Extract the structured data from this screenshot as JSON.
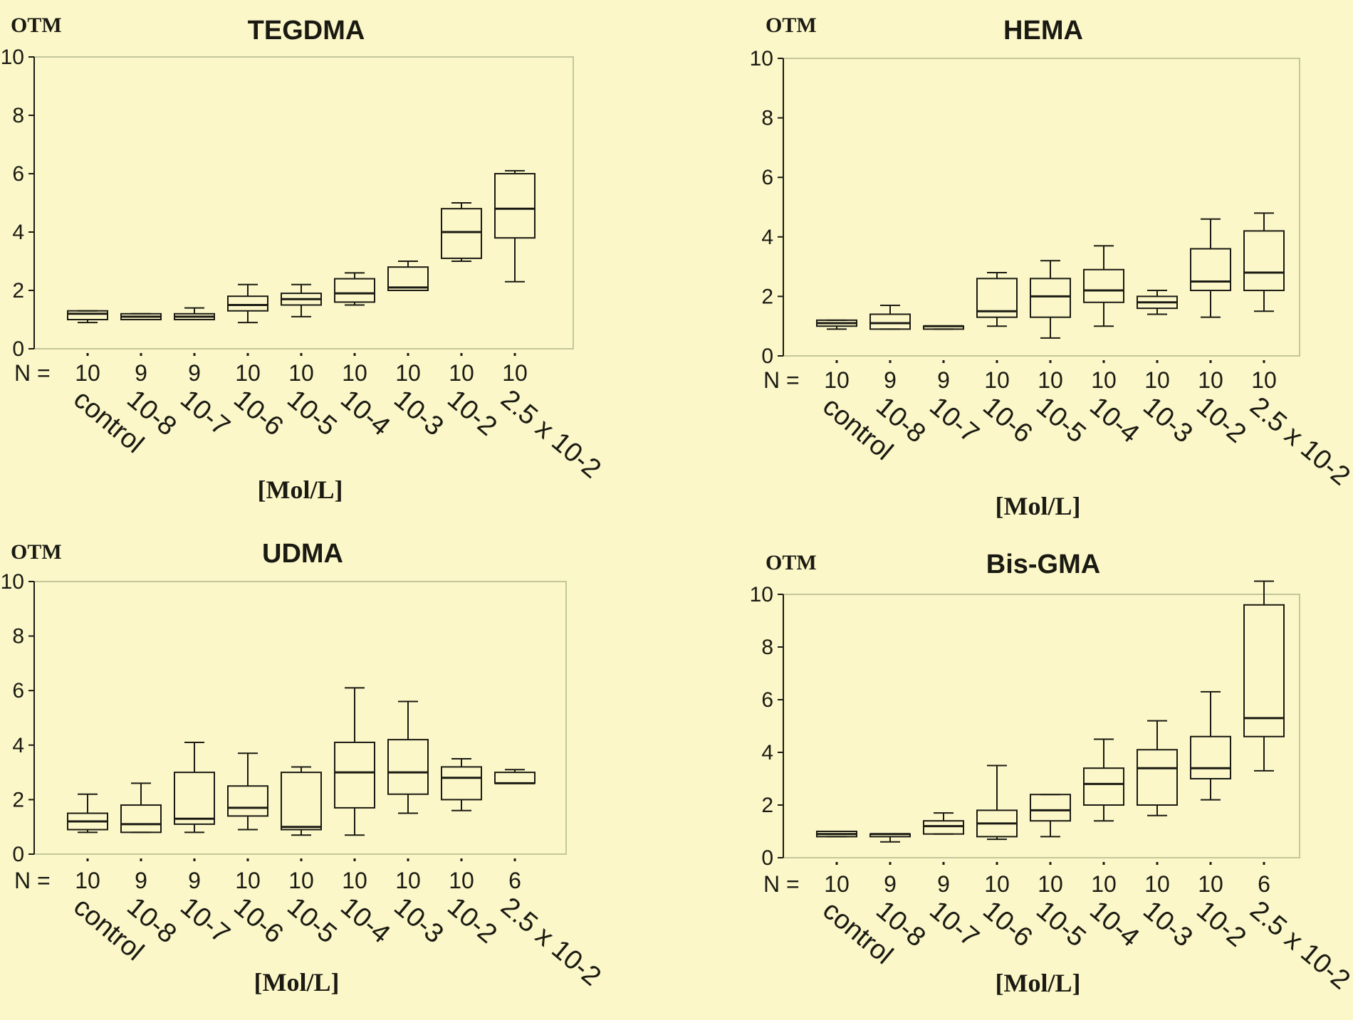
{
  "colors": {
    "background": "#fbf7c9",
    "frame": "#c3c79a",
    "ink": "#1a1a12"
  },
  "chart_data": [
    {
      "type": "box",
      "title": "TEGDMA",
      "ylabel": "OTM",
      "xlabel": "[Mol/L]",
      "n_prefix": "N =",
      "ylim": [
        0,
        10
      ],
      "yticks": [
        "0",
        "2",
        "4",
        "6",
        "8",
        "10"
      ],
      "categories": [
        "control",
        "10-8",
        "10-7",
        "10-6",
        "10-5",
        "10-4",
        "10-3",
        "10-2",
        "2.5 x 10-2"
      ],
      "n": [
        "10",
        "9",
        "9",
        "10",
        "10",
        "10",
        "10",
        "10",
        "10"
      ],
      "boxes": [
        {
          "min": 0.9,
          "q1": 1.0,
          "median": 1.2,
          "q3": 1.3,
          "max": 1.3
        },
        {
          "min": 1.0,
          "q1": 1.0,
          "median": 1.1,
          "q3": 1.2,
          "max": 1.2
        },
        {
          "min": 1.0,
          "q1": 1.0,
          "median": 1.1,
          "q3": 1.2,
          "max": 1.4
        },
        {
          "min": 0.9,
          "q1": 1.3,
          "median": 1.5,
          "q3": 1.8,
          "max": 2.2
        },
        {
          "min": 1.1,
          "q1": 1.5,
          "median": 1.7,
          "q3": 1.9,
          "max": 2.2
        },
        {
          "min": 1.5,
          "q1": 1.6,
          "median": 1.9,
          "q3": 2.4,
          "max": 2.6
        },
        {
          "min": 2.0,
          "q1": 2.0,
          "median": 2.1,
          "q3": 2.8,
          "max": 3.0
        },
        {
          "min": 3.0,
          "q1": 3.1,
          "median": 4.0,
          "q3": 4.8,
          "max": 5.0
        },
        {
          "min": 2.3,
          "q1": 3.8,
          "median": 4.8,
          "q3": 6.0,
          "max": 6.1
        }
      ]
    },
    {
      "type": "box",
      "title": "HEMA",
      "ylabel": "OTM",
      "xlabel": "[Mol/L]",
      "n_prefix": "N =",
      "ylim": [
        0,
        10
      ],
      "yticks": [
        "0",
        "2",
        "4",
        "6",
        "8",
        "10"
      ],
      "categories": [
        "control",
        "10-8",
        "10-7",
        "10-6",
        "10-5",
        "10-4",
        "10-3",
        "10-2",
        "2.5 x 10-2"
      ],
      "n": [
        "10",
        "9",
        "9",
        "10",
        "10",
        "10",
        "10",
        "10",
        "10"
      ],
      "boxes": [
        {
          "min": 0.9,
          "q1": 1.0,
          "median": 1.1,
          "q3": 1.2,
          "max": 1.2
        },
        {
          "min": 0.9,
          "q1": 0.9,
          "median": 1.1,
          "q3": 1.4,
          "max": 1.7
        },
        {
          "min": 0.9,
          "q1": 0.9,
          "median": 1.0,
          "q3": 1.0,
          "max": 1.0
        },
        {
          "min": 1.0,
          "q1": 1.3,
          "median": 1.5,
          "q3": 2.6,
          "max": 2.8
        },
        {
          "min": 0.6,
          "q1": 1.3,
          "median": 2.0,
          "q3": 2.6,
          "max": 3.2
        },
        {
          "min": 1.0,
          "q1": 1.8,
          "median": 2.2,
          "q3": 2.9,
          "max": 3.7
        },
        {
          "min": 1.4,
          "q1": 1.6,
          "median": 1.8,
          "q3": 2.0,
          "max": 2.2
        },
        {
          "min": 1.3,
          "q1": 2.2,
          "median": 2.5,
          "q3": 3.6,
          "max": 4.6
        },
        {
          "min": 1.5,
          "q1": 2.2,
          "median": 2.8,
          "q3": 4.2,
          "max": 4.8
        }
      ]
    },
    {
      "type": "box",
      "title": "UDMA",
      "ylabel": "OTM",
      "xlabel": "[Mol/L]",
      "n_prefix": "N =",
      "ylim": [
        0,
        10
      ],
      "yticks": [
        "0",
        "2",
        "4",
        "6",
        "8",
        "10"
      ],
      "categories": [
        "control",
        "10-8",
        "10-7",
        "10-6",
        "10-5",
        "10-4",
        "10-3",
        "10-2",
        "2.5 x 10-2"
      ],
      "n": [
        "10",
        "9",
        "9",
        "10",
        "10",
        "10",
        "10",
        "10",
        "6"
      ],
      "boxes": [
        {
          "min": 0.8,
          "q1": 0.9,
          "median": 1.2,
          "q3": 1.5,
          "max": 2.2
        },
        {
          "min": 0.8,
          "q1": 0.8,
          "median": 1.1,
          "q3": 1.8,
          "max": 2.6
        },
        {
          "min": 0.8,
          "q1": 1.1,
          "median": 1.3,
          "q3": 3.0,
          "max": 4.1
        },
        {
          "min": 0.9,
          "q1": 1.4,
          "median": 1.7,
          "q3": 2.5,
          "max": 3.7
        },
        {
          "min": 0.7,
          "q1": 0.9,
          "median": 1.0,
          "q3": 3.0,
          "max": 3.2
        },
        {
          "min": 0.7,
          "q1": 1.7,
          "median": 3.0,
          "q3": 4.1,
          "max": 6.1
        },
        {
          "min": 1.5,
          "q1": 2.2,
          "median": 3.0,
          "q3": 4.2,
          "max": 5.6
        },
        {
          "min": 1.6,
          "q1": 2.0,
          "median": 2.8,
          "q3": 3.2,
          "max": 3.5
        },
        {
          "min": 2.6,
          "q1": 2.6,
          "median": 2.6,
          "q3": 3.0,
          "max": 3.1
        }
      ]
    },
    {
      "type": "box",
      "title": "Bis-GMA",
      "ylabel": "OTM",
      "xlabel": "[Mol/L]",
      "n_prefix": "N =",
      "ylim": [
        0,
        10
      ],
      "yticks": [
        "0",
        "2",
        "4",
        "6",
        "8",
        "10"
      ],
      "categories": [
        "control",
        "10-8",
        "10-7",
        "10-6",
        "10-5",
        "10-4",
        "10-3",
        "10-2",
        "2.5 x 10-2"
      ],
      "n": [
        "10",
        "9",
        "9",
        "10",
        "10",
        "10",
        "10",
        "10",
        "6"
      ],
      "boxes": [
        {
          "min": 0.8,
          "q1": 0.8,
          "median": 0.9,
          "q3": 1.0,
          "max": 1.0
        },
        {
          "min": 0.6,
          "q1": 0.8,
          "median": 0.9,
          "q3": 0.9,
          "max": 0.9
        },
        {
          "min": 0.9,
          "q1": 0.9,
          "median": 1.2,
          "q3": 1.4,
          "max": 1.7
        },
        {
          "min": 0.7,
          "q1": 0.8,
          "median": 1.3,
          "q3": 1.8,
          "max": 3.5
        },
        {
          "min": 0.8,
          "q1": 1.4,
          "median": 1.8,
          "q3": 2.4,
          "max": 2.4
        },
        {
          "min": 1.4,
          "q1": 2.0,
          "median": 2.8,
          "q3": 3.4,
          "max": 4.5
        },
        {
          "min": 1.6,
          "q1": 2.0,
          "median": 3.4,
          "q3": 4.1,
          "max": 5.2
        },
        {
          "min": 2.2,
          "q1": 3.0,
          "median": 3.4,
          "q3": 4.6,
          "max": 6.3
        },
        {
          "min": 3.3,
          "q1": 4.6,
          "median": 5.3,
          "q3": 9.6,
          "max": 10.5
        }
      ]
    }
  ]
}
